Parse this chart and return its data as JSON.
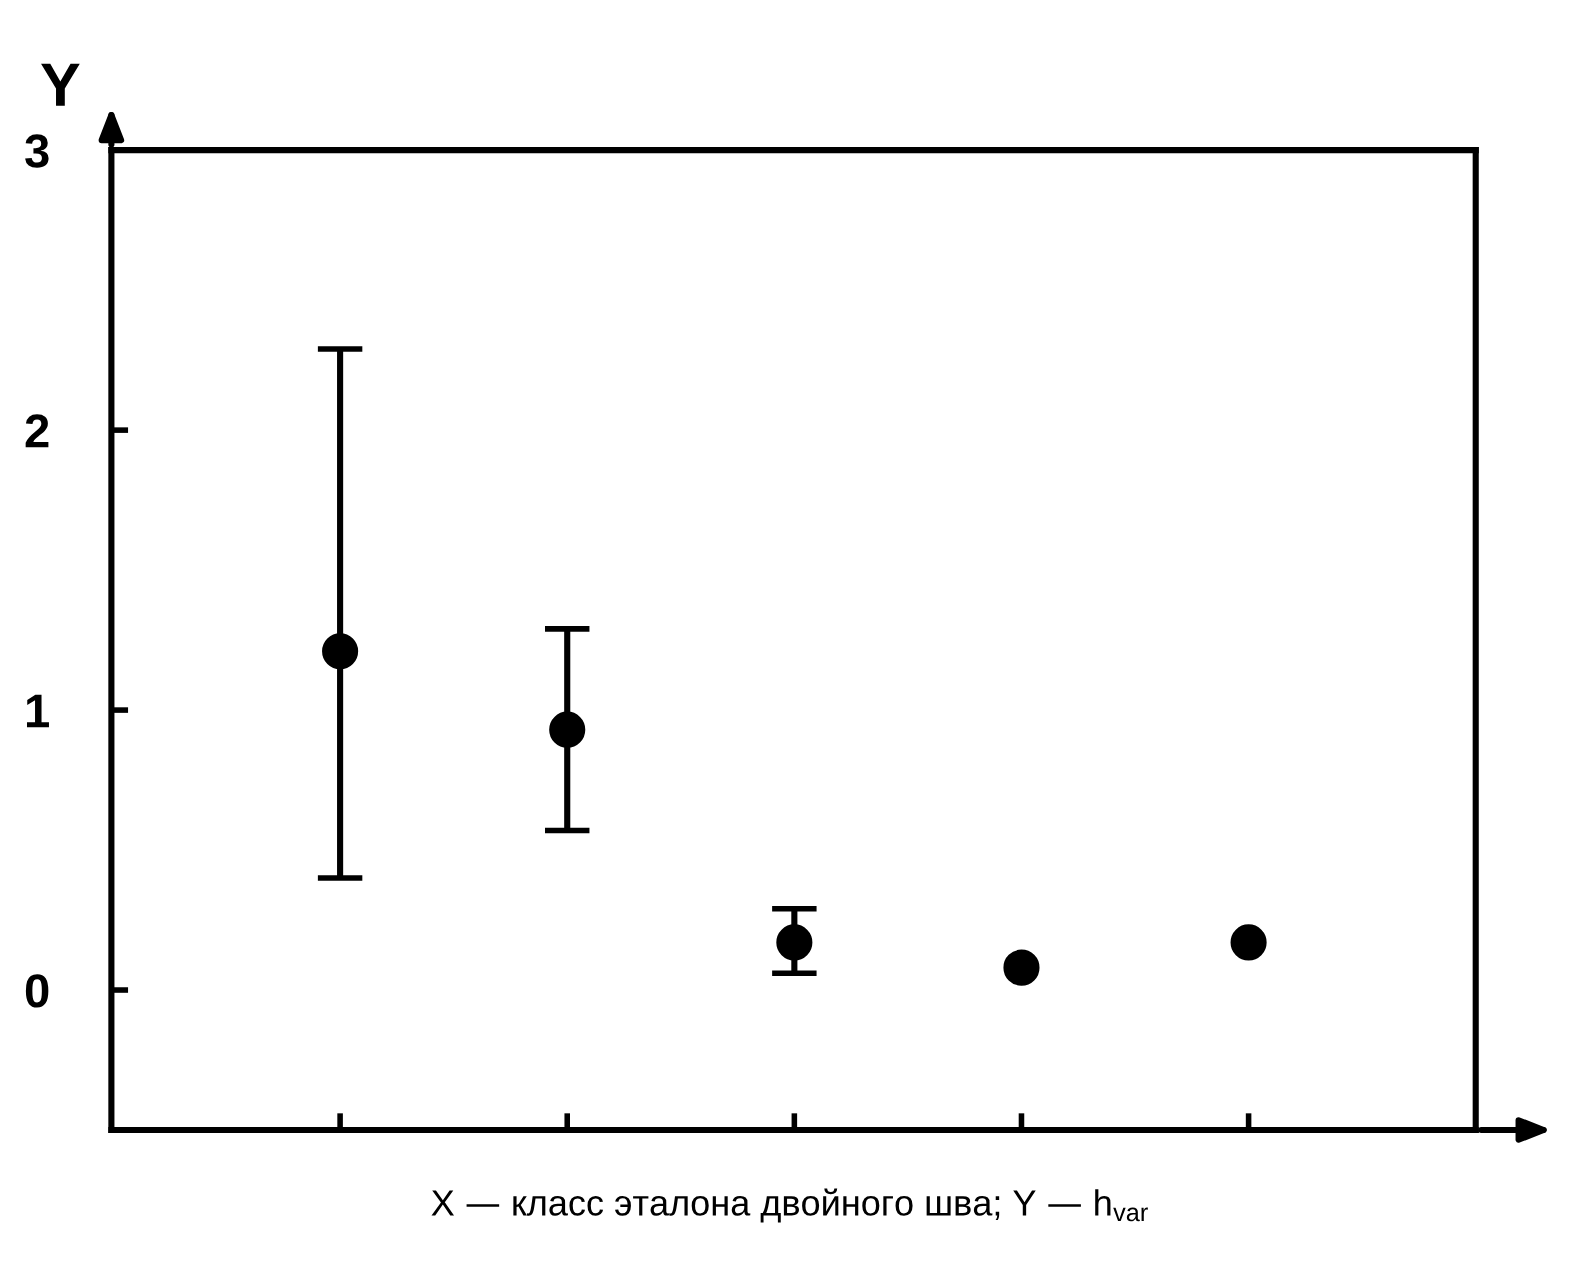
{
  "chart_data": {
    "type": "scatter",
    "ylabel": "Y",
    "categories": [
      null,
      null,
      null,
      null,
      null
    ],
    "series": [
      {
        "color": "#000000",
        "values": [
          1.21,
          0.93,
          0.17,
          0.08,
          0.17
        ],
        "errors": [
          [
            0.4,
            2.29
          ],
          [
            0.57,
            1.29
          ],
          [
            0.06,
            0.29
          ],
          null,
          null
        ]
      }
    ],
    "ylim": [
      -0.5,
      3
    ],
    "yticks": [
      0,
      1,
      2,
      3
    ],
    "marker": "circle",
    "grid": false,
    "annotations": [
      "X — класс эталона двойного шва; Y — h$_{var}$"
    ]
  }
}
